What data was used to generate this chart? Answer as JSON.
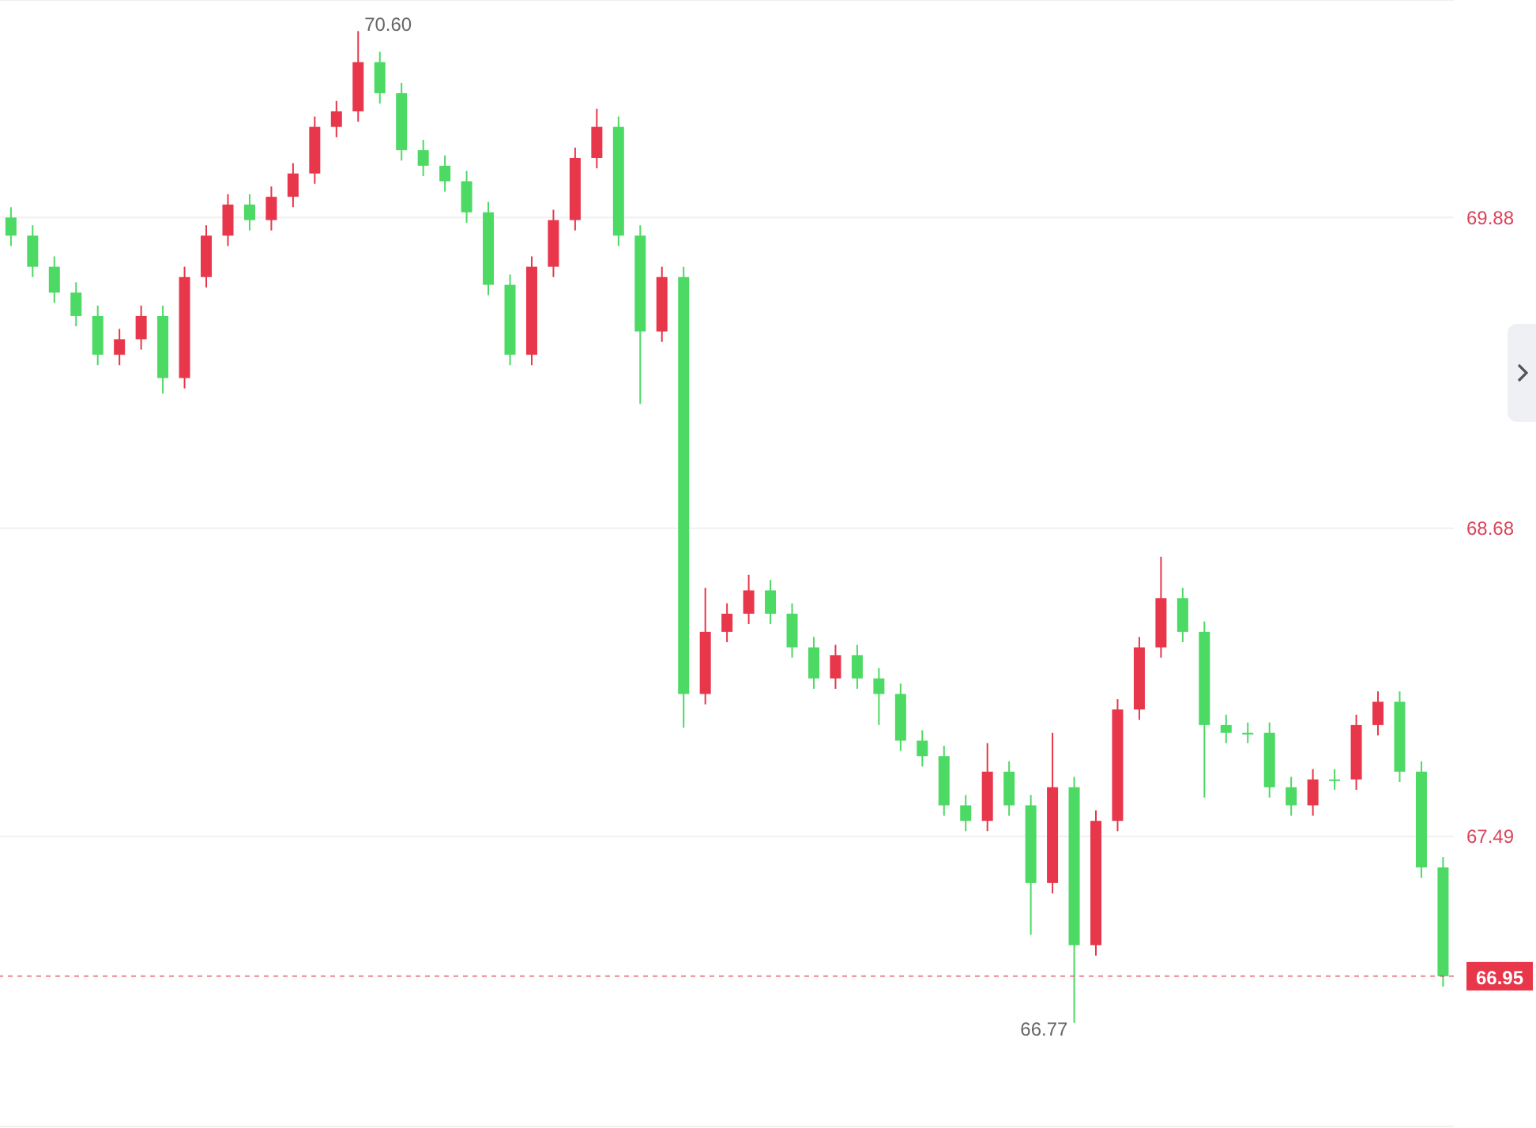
{
  "chart_data": {
    "type": "candlestick",
    "categories": [
      null,
      null,
      null,
      null,
      null,
      null,
      null,
      null,
      null,
      null,
      null,
      null,
      null,
      null,
      null,
      null,
      null,
      null,
      null,
      null,
      null,
      null,
      null,
      null,
      null,
      null,
      null,
      null,
      null,
      null,
      null,
      null,
      null,
      null,
      null,
      null,
      null,
      null,
      null,
      null,
      null,
      null,
      null,
      null,
      null,
      null,
      null,
      null,
      null,
      null,
      null,
      null,
      null,
      null,
      null,
      null,
      null,
      null,
      null,
      null,
      null,
      null,
      null,
      null,
      null,
      null,
      null
    ],
    "ohlc": [
      [
        69.88,
        69.92,
        69.77,
        69.81
      ],
      [
        69.81,
        69.85,
        69.65,
        69.69
      ],
      [
        69.69,
        69.73,
        69.55,
        69.59
      ],
      [
        69.59,
        69.63,
        69.46,
        69.5
      ],
      [
        69.5,
        69.54,
        69.31,
        69.35
      ],
      [
        69.35,
        69.45,
        69.31,
        69.41
      ],
      [
        69.41,
        69.54,
        69.37,
        69.5
      ],
      [
        69.5,
        69.54,
        69.2,
        69.26
      ],
      [
        69.26,
        69.69,
        69.22,
        69.65
      ],
      [
        69.65,
        69.85,
        69.61,
        69.81
      ],
      [
        69.81,
        69.97,
        69.77,
        69.93
      ],
      [
        69.93,
        69.97,
        69.83,
        69.87
      ],
      [
        69.87,
        70.0,
        69.83,
        69.96
      ],
      [
        69.96,
        70.09,
        69.92,
        70.05
      ],
      [
        70.05,
        70.27,
        70.01,
        70.23
      ],
      [
        70.23,
        70.33,
        70.19,
        70.29
      ],
      [
        70.29,
        70.6,
        70.25,
        70.48
      ],
      [
        70.48,
        70.52,
        70.32,
        70.36
      ],
      [
        70.36,
        70.4,
        70.1,
        70.14
      ],
      [
        70.14,
        70.18,
        70.04,
        70.08
      ],
      [
        70.08,
        70.12,
        69.98,
        70.02
      ],
      [
        70.02,
        70.06,
        69.86,
        69.9
      ],
      [
        69.9,
        69.94,
        69.58,
        69.62
      ],
      [
        69.62,
        69.66,
        69.31,
        69.35
      ],
      [
        69.35,
        69.73,
        69.31,
        69.69
      ],
      [
        69.69,
        69.91,
        69.65,
        69.87
      ],
      [
        69.87,
        70.15,
        69.83,
        70.11
      ],
      [
        70.11,
        70.3,
        70.07,
        70.23
      ],
      [
        70.23,
        70.27,
        69.77,
        69.81
      ],
      [
        69.81,
        69.85,
        69.16,
        69.44
      ],
      [
        69.44,
        69.69,
        69.4,
        69.65
      ],
      [
        69.65,
        69.69,
        67.91,
        68.04
      ],
      [
        68.04,
        68.45,
        68.0,
        68.28
      ],
      [
        68.28,
        68.39,
        68.24,
        68.35
      ],
      [
        68.35,
        68.5,
        68.31,
        68.44
      ],
      [
        68.44,
        68.48,
        68.31,
        68.35
      ],
      [
        68.35,
        68.39,
        68.18,
        68.22
      ],
      [
        68.22,
        68.26,
        68.06,
        68.1
      ],
      [
        68.1,
        68.23,
        68.06,
        68.19
      ],
      [
        68.19,
        68.23,
        68.06,
        68.1
      ],
      [
        68.1,
        68.14,
        67.92,
        68.04
      ],
      [
        68.04,
        68.08,
        67.82,
        67.86
      ],
      [
        67.86,
        67.9,
        67.76,
        67.8
      ],
      [
        67.8,
        67.84,
        67.57,
        67.61
      ],
      [
        67.61,
        67.65,
        67.51,
        67.55
      ],
      [
        67.55,
        67.85,
        67.51,
        67.74
      ],
      [
        67.74,
        67.78,
        67.57,
        67.61
      ],
      [
        67.61,
        67.65,
        67.11,
        67.31
      ],
      [
        67.31,
        67.89,
        67.27,
        67.68
      ],
      [
        67.68,
        67.72,
        66.77,
        67.07
      ],
      [
        67.07,
        67.59,
        67.03,
        67.55
      ],
      [
        67.55,
        68.02,
        67.51,
        67.98
      ],
      [
        67.98,
        68.26,
        67.94,
        68.22
      ],
      [
        68.22,
        68.57,
        68.18,
        68.41
      ],
      [
        68.41,
        68.45,
        68.24,
        68.28
      ],
      [
        68.28,
        68.32,
        67.64,
        67.92
      ],
      [
        67.92,
        67.96,
        67.85,
        67.89
      ],
      [
        67.89,
        67.93,
        67.85,
        67.89
      ],
      [
        67.89,
        67.93,
        67.64,
        67.68
      ],
      [
        67.68,
        67.72,
        67.57,
        67.61
      ],
      [
        67.61,
        67.75,
        67.57,
        67.71
      ],
      [
        67.71,
        67.75,
        67.67,
        67.71
      ],
      [
        67.71,
        67.96,
        67.67,
        67.92
      ],
      [
        67.92,
        68.05,
        67.88,
        68.01
      ],
      [
        68.01,
        68.05,
        67.7,
        67.74
      ],
      [
        67.74,
        67.78,
        67.33,
        67.37
      ],
      [
        67.37,
        67.41,
        66.91,
        66.95
      ]
    ],
    "colors": [
      "#4cd964",
      "#4cd964",
      "#4cd964",
      "#4cd964",
      "#4cd964",
      "#e8364a",
      "#e8364a",
      "#4cd964",
      "#e8364a",
      "#e8364a",
      "#e8364a",
      "#4cd964",
      "#e8364a",
      "#e8364a",
      "#e8364a",
      "#e8364a",
      "#e8364a",
      "#4cd964",
      "#4cd964",
      "#4cd964",
      "#4cd964",
      "#4cd964",
      "#4cd964",
      "#4cd964",
      "#e8364a",
      "#e8364a",
      "#e8364a",
      "#e8364a",
      "#4cd964",
      "#4cd964",
      "#e8364a",
      "#4cd964",
      "#e8364a",
      "#e8364a",
      "#e8364a",
      "#4cd964",
      "#4cd964",
      "#4cd964",
      "#e8364a",
      "#4cd964",
      "#4cd964",
      "#4cd964",
      "#4cd964",
      "#4cd964",
      "#4cd964",
      "#e8364a",
      "#4cd964",
      "#4cd964",
      "#e8364a",
      "#4cd964",
      "#e8364a",
      "#e8364a",
      "#e8364a",
      "#e8364a",
      "#4cd964",
      "#4cd964",
      "#4cd964",
      "#4cd964",
      "#4cd964",
      "#4cd964",
      "#e8364a",
      "#4cd964",
      "#e8364a",
      "#e8364a",
      "#4cd964",
      "#4cd964",
      "#4cd964"
    ],
    "ylim": [
      66.37,
      70.72
    ],
    "yticks": [
      69.88,
      68.68,
      67.49
    ],
    "grid": "y",
    "ref_lines": [
      {
        "axis": "y",
        "value": 66.95,
        "label": "66.95",
        "color": "#e8364a",
        "line_style": "dashed"
      }
    ],
    "annotations": [
      "70.60",
      "66.77"
    ]
  }
}
